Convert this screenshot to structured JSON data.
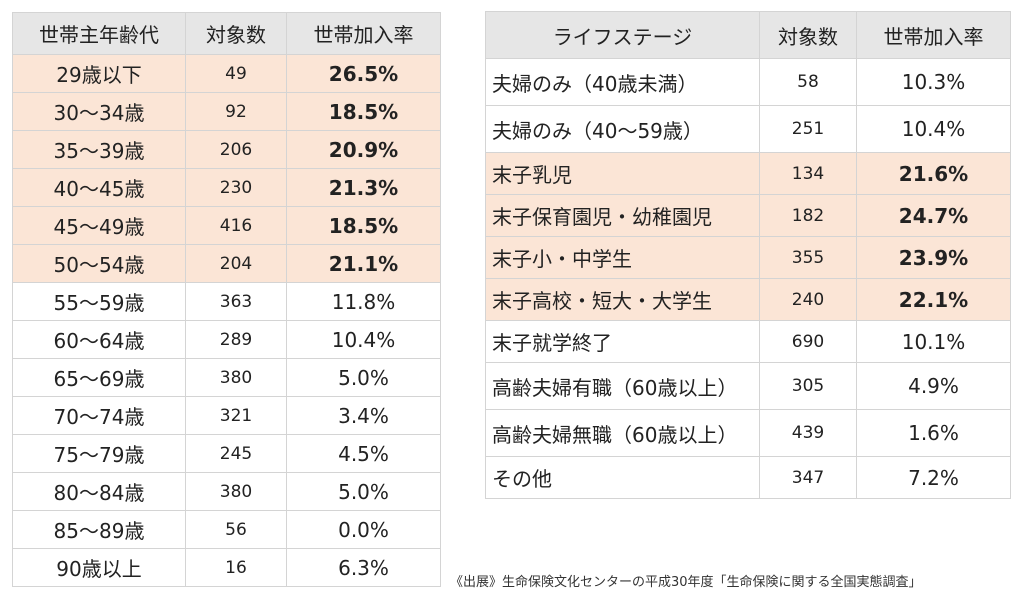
{
  "left_table": {
    "headers": [
      "世帯主年齢代",
      "対象数",
      "世帯加入率"
    ],
    "rows": [
      {
        "label": "29歳以下",
        "count": "49",
        "rate": "26.5%",
        "highlight": true
      },
      {
        "label": "30～34歳",
        "count": "92",
        "rate": "18.5%",
        "highlight": true
      },
      {
        "label": "35～39歳",
        "count": "206",
        "rate": "20.9%",
        "highlight": true
      },
      {
        "label": "40～45歳",
        "count": "230",
        "rate": "21.3%",
        "highlight": true
      },
      {
        "label": "45～49歳",
        "count": "416",
        "rate": "18.5%",
        "highlight": true
      },
      {
        "label": "50～54歳",
        "count": "204",
        "rate": "21.1%",
        "highlight": true
      },
      {
        "label": "55～59歳",
        "count": "363",
        "rate": "11.8%",
        "highlight": false
      },
      {
        "label": "60～64歳",
        "count": "289",
        "rate": "10.4%",
        "highlight": false
      },
      {
        "label": "65～69歳",
        "count": "380",
        "rate": "5.0%",
        "highlight": false
      },
      {
        "label": "70～74歳",
        "count": "321",
        "rate": "3.4%",
        "highlight": false
      },
      {
        "label": "75～79歳",
        "count": "245",
        "rate": "4.5%",
        "highlight": false
      },
      {
        "label": "80～84歳",
        "count": "380",
        "rate": "5.0%",
        "highlight": false
      },
      {
        "label": "85～89歳",
        "count": "56",
        "rate": "0.0%",
        "highlight": false
      },
      {
        "label": "90歳以上",
        "count": "16",
        "rate": "6.3%",
        "highlight": false
      }
    ]
  },
  "right_table": {
    "headers": [
      "ライフステージ",
      "対象数",
      "世帯加入率"
    ],
    "rows": [
      {
        "label": "夫婦のみ（40歳未満）",
        "count": "58",
        "rate": "10.3%",
        "highlight": false
      },
      {
        "label": "夫婦のみ（40～59歳）",
        "count": "251",
        "rate": "10.4%",
        "highlight": false
      },
      {
        "label": "末子乳児",
        "count": "134",
        "rate": "21.6%",
        "highlight": true
      },
      {
        "label": "末子保育園児・幼稚園児",
        "count": "182",
        "rate": "24.7%",
        "highlight": true
      },
      {
        "label": "末子小・中学生",
        "count": "355",
        "rate": "23.9%",
        "highlight": true
      },
      {
        "label": "末子高校・短大・大学生",
        "count": "240",
        "rate": "22.1%",
        "highlight": true
      },
      {
        "label": "末子就学終了",
        "count": "690",
        "rate": "10.1%",
        "highlight": false
      },
      {
        "label": "高齢夫婦有職（60歳以上）",
        "count": "305",
        "rate": "4.9%",
        "highlight": false
      },
      {
        "label": "高齢夫婦無職（60歳以上）",
        "count": "439",
        "rate": "1.6%",
        "highlight": false
      },
      {
        "label": "その他",
        "count": "347",
        "rate": "7.2%",
        "highlight": false
      }
    ]
  },
  "source": "《出展》生命保険文化センターの平成30年度「生命保険に関する全国実態調査」",
  "colors": {
    "header_bg": "#e6e6e6",
    "highlight_bg": "#fbe5d6",
    "border": "#d4d4d4"
  }
}
